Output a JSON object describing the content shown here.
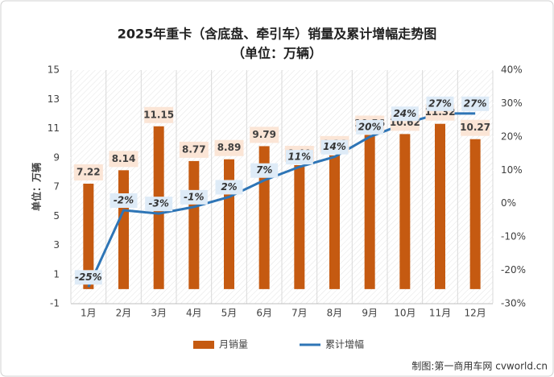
{
  "chart_data": {
    "type": "combo",
    "title": "2025年重卡（含底盘、牵引车）销量及累计增幅走势图",
    "subtitle": "（单位：万辆）",
    "y_label": "单位：万辆",
    "source": "制图:第一商用车网 cvworld.cn",
    "categories": [
      "1月",
      "2月",
      "3月",
      "4月",
      "5月",
      "6月",
      "7月",
      "8月",
      "9月",
      "10月",
      "11月",
      "12月"
    ],
    "ylim": [
      -1,
      15
    ],
    "yticks": [
      -1,
      1,
      3,
      5,
      7,
      9,
      11,
      13,
      15
    ],
    "y2lim": [
      -30,
      40
    ],
    "y2ticks": [
      {
        "value": -30,
        "label": "-30%"
      },
      {
        "value": -20,
        "label": "-20%"
      },
      {
        "value": -10,
        "label": "-10%"
      },
      {
        "value": 0,
        "label": "0%"
      },
      {
        "value": 10,
        "label": "10%"
      },
      {
        "value": 20,
        "label": "20%"
      },
      {
        "value": 30,
        "label": "30%"
      },
      {
        "value": 40,
        "label": "40%"
      }
    ],
    "legend": "bottom",
    "series": [
      {
        "name": "月销量",
        "type": "bar",
        "color": "#c55a11",
        "values": [
          7.22,
          8.14,
          11.15,
          8.77,
          8.89,
          9.79,
          8.49,
          9.16,
          10.56,
          10.62,
          11.32,
          10.27
        ]
      },
      {
        "name": "累计增幅",
        "type": "line",
        "axis": "y2",
        "color": "#2e75b6",
        "values": [
          -25,
          -2,
          -3,
          -1,
          2,
          7,
          11,
          14,
          20,
          24,
          27,
          27
        ],
        "value_labels": [
          "-25%",
          "-2%",
          "-3%",
          "-1%",
          "2%",
          "7%",
          "11%",
          "14%",
          "20%",
          "24%",
          "27%",
          "27%"
        ]
      }
    ]
  }
}
